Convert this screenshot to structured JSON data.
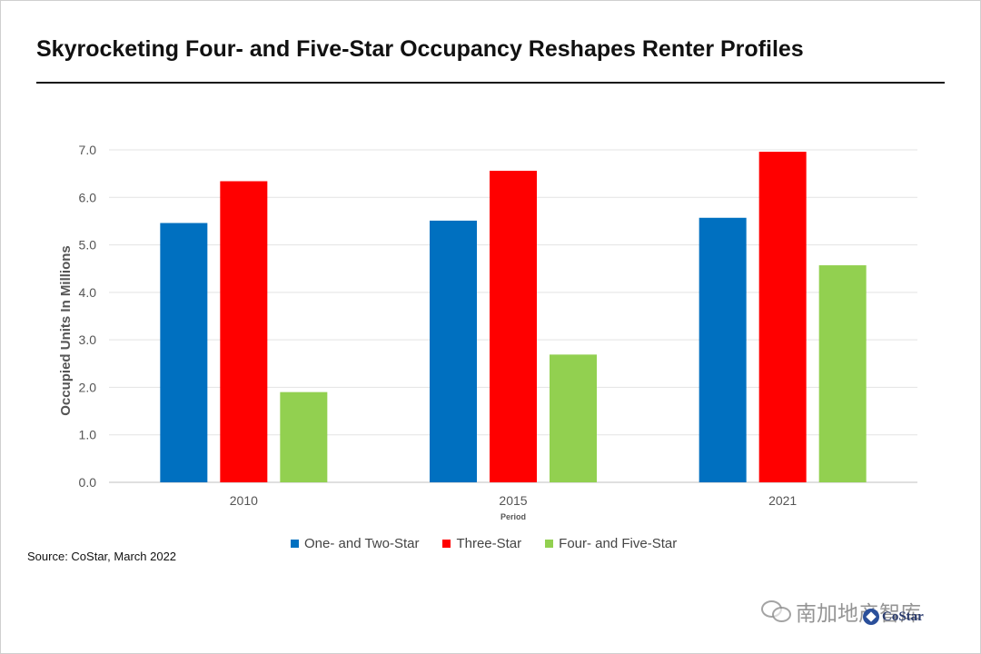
{
  "chart_data": {
    "type": "bar",
    "title": "Skyrocketing Four- and Five-Star Occupancy Reshapes Renter Profiles",
    "xlabel": "Period",
    "ylabel": "Occupied Units In Millions",
    "categories": [
      "2010",
      "2015",
      "2021"
    ],
    "ylim": [
      0,
      7
    ],
    "yticks": [
      "0.0",
      "1.0",
      "2.0",
      "3.0",
      "4.0",
      "5.0",
      "6.0",
      "7.0"
    ],
    "grid": true,
    "legend_position": "bottom",
    "series": [
      {
        "name": "One- and Two-Star",
        "color": "#0070C0",
        "values": [
          5.46,
          5.51,
          5.57
        ]
      },
      {
        "name": "Three-Star",
        "color": "#FF0000",
        "values": [
          6.34,
          6.56,
          6.96
        ]
      },
      {
        "name": "Four- and Five-Star",
        "color": "#92D050",
        "values": [
          1.9,
          2.69,
          4.57
        ]
      }
    ]
  },
  "source": "Source: CoStar, March 2022",
  "watermark": {
    "text": "南加地产智库",
    "icon": "wechat-icon"
  },
  "logo": {
    "text": "CoStar"
  }
}
